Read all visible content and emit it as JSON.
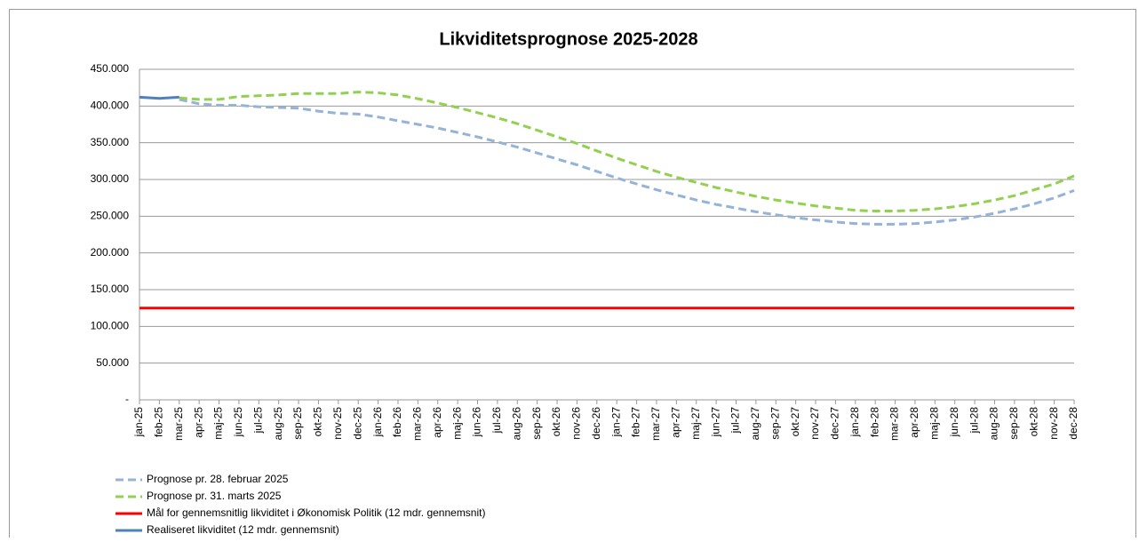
{
  "chart_data": {
    "type": "line",
    "title": "Likviditetsprognose 2025-2028",
    "categories": [
      "jan-25",
      "feb-25",
      "mar-25",
      "apr-25",
      "maj-25",
      "jun-25",
      "jul-25",
      "aug-25",
      "sep-25",
      "okt-25",
      "nov-25",
      "dec-25",
      "jan-26",
      "feb-26",
      "mar-26",
      "apr-26",
      "maj-26",
      "jun-26",
      "jul-26",
      "aug-26",
      "sep-26",
      "okt-26",
      "nov-26",
      "dec-26",
      "jan-27",
      "feb-27",
      "mar-27",
      "apr-27",
      "maj-27",
      "jun-27",
      "jul-27",
      "aug-27",
      "sep-27",
      "okt-27",
      "nov-27",
      "dec-27",
      "jan-28",
      "feb-28",
      "mar-28",
      "apr-28",
      "maj-28",
      "jun-28",
      "jul-28",
      "aug-28",
      "sep-28",
      "okt-28",
      "nov-28",
      "dec-28"
    ],
    "series": [
      {
        "name": "Prognose pr. 28. februar 2025",
        "color": "#95b3d7",
        "dashed": true,
        "values": [
          null,
          null,
          409000,
          403000,
          401000,
          401000,
          399000,
          398000,
          397000,
          393000,
          390000,
          389000,
          385000,
          380000,
          375000,
          370000,
          364000,
          358000,
          351000,
          344000,
          336000,
          328000,
          320000,
          311000,
          302000,
          294000,
          286000,
          279000,
          272000,
          266000,
          261000,
          256000,
          252000,
          248000,
          245000,
          242000,
          240000,
          239000,
          239000,
          240000,
          242000,
          245000,
          249000,
          254000,
          260000,
          267000,
          275000,
          285000
        ]
      },
      {
        "name": "Prognose pr. 31. marts 2025",
        "color": "#92d050",
        "dashed": true,
        "values": [
          null,
          null,
          411000,
          409000,
          409000,
          413000,
          414000,
          415000,
          417000,
          417000,
          417000,
          419000,
          418000,
          415000,
          410000,
          404000,
          398000,
          391000,
          384000,
          376000,
          367000,
          358000,
          349000,
          339000,
          329000,
          320000,
          311000,
          303000,
          296000,
          289000,
          283000,
          277000,
          272000,
          268000,
          264000,
          261000,
          258000,
          257000,
          257000,
          258000,
          260000,
          263000,
          267000,
          272000,
          278000,
          286000,
          294000,
          305000
        ]
      },
      {
        "name": "Mål for gennemsnitlig likviditet i Økonomisk Politik (12 mdr. gennemsnit)",
        "color": "#ff0000",
        "dashed": false,
        "values": [
          125000,
          125000,
          125000,
          125000,
          125000,
          125000,
          125000,
          125000,
          125000,
          125000,
          125000,
          125000,
          125000,
          125000,
          125000,
          125000,
          125000,
          125000,
          125000,
          125000,
          125000,
          125000,
          125000,
          125000,
          125000,
          125000,
          125000,
          125000,
          125000,
          125000,
          125000,
          125000,
          125000,
          125000,
          125000,
          125000,
          125000,
          125000,
          125000,
          125000,
          125000,
          125000,
          125000,
          125000,
          125000,
          125000,
          125000,
          125000
        ]
      },
      {
        "name": "Realiseret likviditet (12 mdr. gennemsnit)",
        "color": "#4f81bd",
        "dashed": false,
        "values": [
          412000,
          410500,
          412000,
          null,
          null,
          null,
          null,
          null,
          null,
          null,
          null,
          null,
          null,
          null,
          null,
          null,
          null,
          null,
          null,
          null,
          null,
          null,
          null,
          null,
          null,
          null,
          null,
          null,
          null,
          null,
          null,
          null,
          null,
          null,
          null,
          null,
          null,
          null,
          null,
          null,
          null,
          null,
          null,
          null,
          null,
          null,
          null,
          null
        ]
      }
    ],
    "ylim": [
      0,
      450000
    ],
    "yticks": [
      {
        "value": 0,
        "label": "-"
      },
      {
        "value": 50000,
        "label": "50.000"
      },
      {
        "value": 100000,
        "label": "100.000"
      },
      {
        "value": 150000,
        "label": "150.000"
      },
      {
        "value": 200000,
        "label": "200.000"
      },
      {
        "value": 250000,
        "label": "250.000"
      },
      {
        "value": 300000,
        "label": "300.000"
      },
      {
        "value": 350000,
        "label": "350.000"
      },
      {
        "value": 400000,
        "label": "400.000"
      },
      {
        "value": 450000,
        "label": "450.000"
      }
    ],
    "grid": true,
    "legend": "bottom-left"
  }
}
